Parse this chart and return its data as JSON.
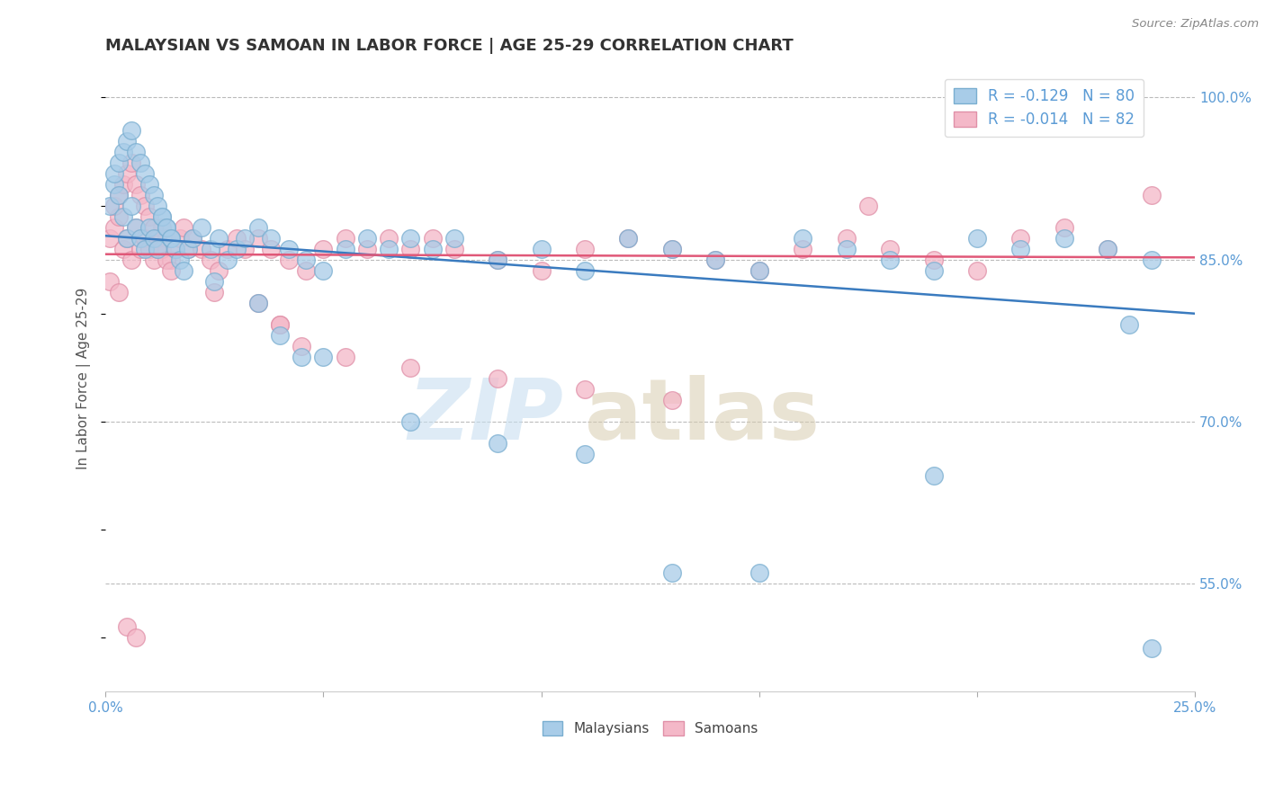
{
  "title": "MALAYSIAN VS SAMOAN IN LABOR FORCE | AGE 25-29 CORRELATION CHART",
  "source": "Source: ZipAtlas.com",
  "ylabel": "In Labor Force | Age 25-29",
  "xlim": [
    0.0,
    0.25
  ],
  "ylim": [
    0.45,
    1.03
  ],
  "ytick_labels_right": [
    "55.0%",
    "70.0%",
    "85.0%",
    "100.0%"
  ],
  "ytick_vals_right": [
    0.55,
    0.7,
    0.85,
    1.0
  ],
  "R_blue": -0.129,
  "N_blue": 80,
  "R_pink": -0.014,
  "N_pink": 82,
  "blue_fill": "#a8cce8",
  "blue_edge": "#7aaed0",
  "pink_fill": "#f4b8c8",
  "pink_edge": "#e090a8",
  "blue_line_color": "#3a7bbf",
  "pink_line_color": "#e05878",
  "axis_color": "#5b9bd5",
  "grid_color": "#bbbbbb",
  "blue_trend_y0": 0.872,
  "blue_trend_y1": 0.8,
  "pink_trend_y0": 0.855,
  "pink_trend_y1": 0.852,
  "blue_x": [
    0.001,
    0.002,
    0.003,
    0.004,
    0.005,
    0.006,
    0.007,
    0.008,
    0.009,
    0.01,
    0.011,
    0.012,
    0.013,
    0.014,
    0.015,
    0.002,
    0.003,
    0.004,
    0.005,
    0.006,
    0.007,
    0.008,
    0.009,
    0.01,
    0.011,
    0.012,
    0.013,
    0.014,
    0.015,
    0.016,
    0.017,
    0.018,
    0.019,
    0.02,
    0.022,
    0.024,
    0.026,
    0.028,
    0.03,
    0.032,
    0.035,
    0.038,
    0.042,
    0.046,
    0.05,
    0.055,
    0.06,
    0.065,
    0.07,
    0.075,
    0.08,
    0.09,
    0.1,
    0.11,
    0.12,
    0.13,
    0.14,
    0.15,
    0.16,
    0.17,
    0.18,
    0.19,
    0.2,
    0.21,
    0.22,
    0.23,
    0.235,
    0.24,
    0.05,
    0.07,
    0.09,
    0.11,
    0.13,
    0.15,
    0.025,
    0.035,
    0.04,
    0.045,
    0.19,
    0.24
  ],
  "blue_y": [
    0.9,
    0.92,
    0.91,
    0.89,
    0.87,
    0.9,
    0.88,
    0.87,
    0.86,
    0.88,
    0.87,
    0.86,
    0.89,
    0.88,
    0.87,
    0.93,
    0.94,
    0.95,
    0.96,
    0.97,
    0.95,
    0.94,
    0.93,
    0.92,
    0.91,
    0.9,
    0.89,
    0.88,
    0.87,
    0.86,
    0.85,
    0.84,
    0.86,
    0.87,
    0.88,
    0.86,
    0.87,
    0.85,
    0.86,
    0.87,
    0.88,
    0.87,
    0.86,
    0.85,
    0.84,
    0.86,
    0.87,
    0.86,
    0.87,
    0.86,
    0.87,
    0.85,
    0.86,
    0.84,
    0.87,
    0.86,
    0.85,
    0.84,
    0.87,
    0.86,
    0.85,
    0.84,
    0.87,
    0.86,
    0.87,
    0.86,
    0.79,
    0.85,
    0.76,
    0.7,
    0.68,
    0.67,
    0.56,
    0.56,
    0.83,
    0.81,
    0.78,
    0.76,
    0.65,
    0.49
  ],
  "pink_x": [
    0.001,
    0.002,
    0.003,
    0.004,
    0.005,
    0.006,
    0.007,
    0.008,
    0.009,
    0.01,
    0.011,
    0.012,
    0.013,
    0.014,
    0.015,
    0.002,
    0.003,
    0.004,
    0.005,
    0.006,
    0.007,
    0.008,
    0.009,
    0.01,
    0.011,
    0.012,
    0.013,
    0.014,
    0.015,
    0.016,
    0.017,
    0.018,
    0.019,
    0.02,
    0.022,
    0.024,
    0.026,
    0.028,
    0.03,
    0.032,
    0.035,
    0.038,
    0.042,
    0.046,
    0.05,
    0.055,
    0.06,
    0.065,
    0.07,
    0.075,
    0.08,
    0.09,
    0.1,
    0.11,
    0.12,
    0.13,
    0.14,
    0.15,
    0.16,
    0.17,
    0.18,
    0.19,
    0.2,
    0.21,
    0.22,
    0.23,
    0.04,
    0.055,
    0.07,
    0.09,
    0.11,
    0.13,
    0.025,
    0.035,
    0.04,
    0.045,
    0.175,
    0.24,
    0.001,
    0.003,
    0.005,
    0.007
  ],
  "pink_y": [
    0.87,
    0.88,
    0.89,
    0.86,
    0.87,
    0.85,
    0.88,
    0.86,
    0.87,
    0.86,
    0.85,
    0.86,
    0.88,
    0.87,
    0.85,
    0.9,
    0.91,
    0.92,
    0.93,
    0.94,
    0.92,
    0.91,
    0.9,
    0.89,
    0.88,
    0.87,
    0.86,
    0.85,
    0.84,
    0.86,
    0.87,
    0.88,
    0.86,
    0.87,
    0.86,
    0.85,
    0.84,
    0.86,
    0.87,
    0.86,
    0.87,
    0.86,
    0.85,
    0.84,
    0.86,
    0.87,
    0.86,
    0.87,
    0.86,
    0.87,
    0.86,
    0.85,
    0.84,
    0.86,
    0.87,
    0.86,
    0.85,
    0.84,
    0.86,
    0.87,
    0.86,
    0.85,
    0.84,
    0.87,
    0.88,
    0.86,
    0.79,
    0.76,
    0.75,
    0.74,
    0.73,
    0.72,
    0.82,
    0.81,
    0.79,
    0.77,
    0.9,
    0.91,
    0.83,
    0.82,
    0.51,
    0.5
  ]
}
